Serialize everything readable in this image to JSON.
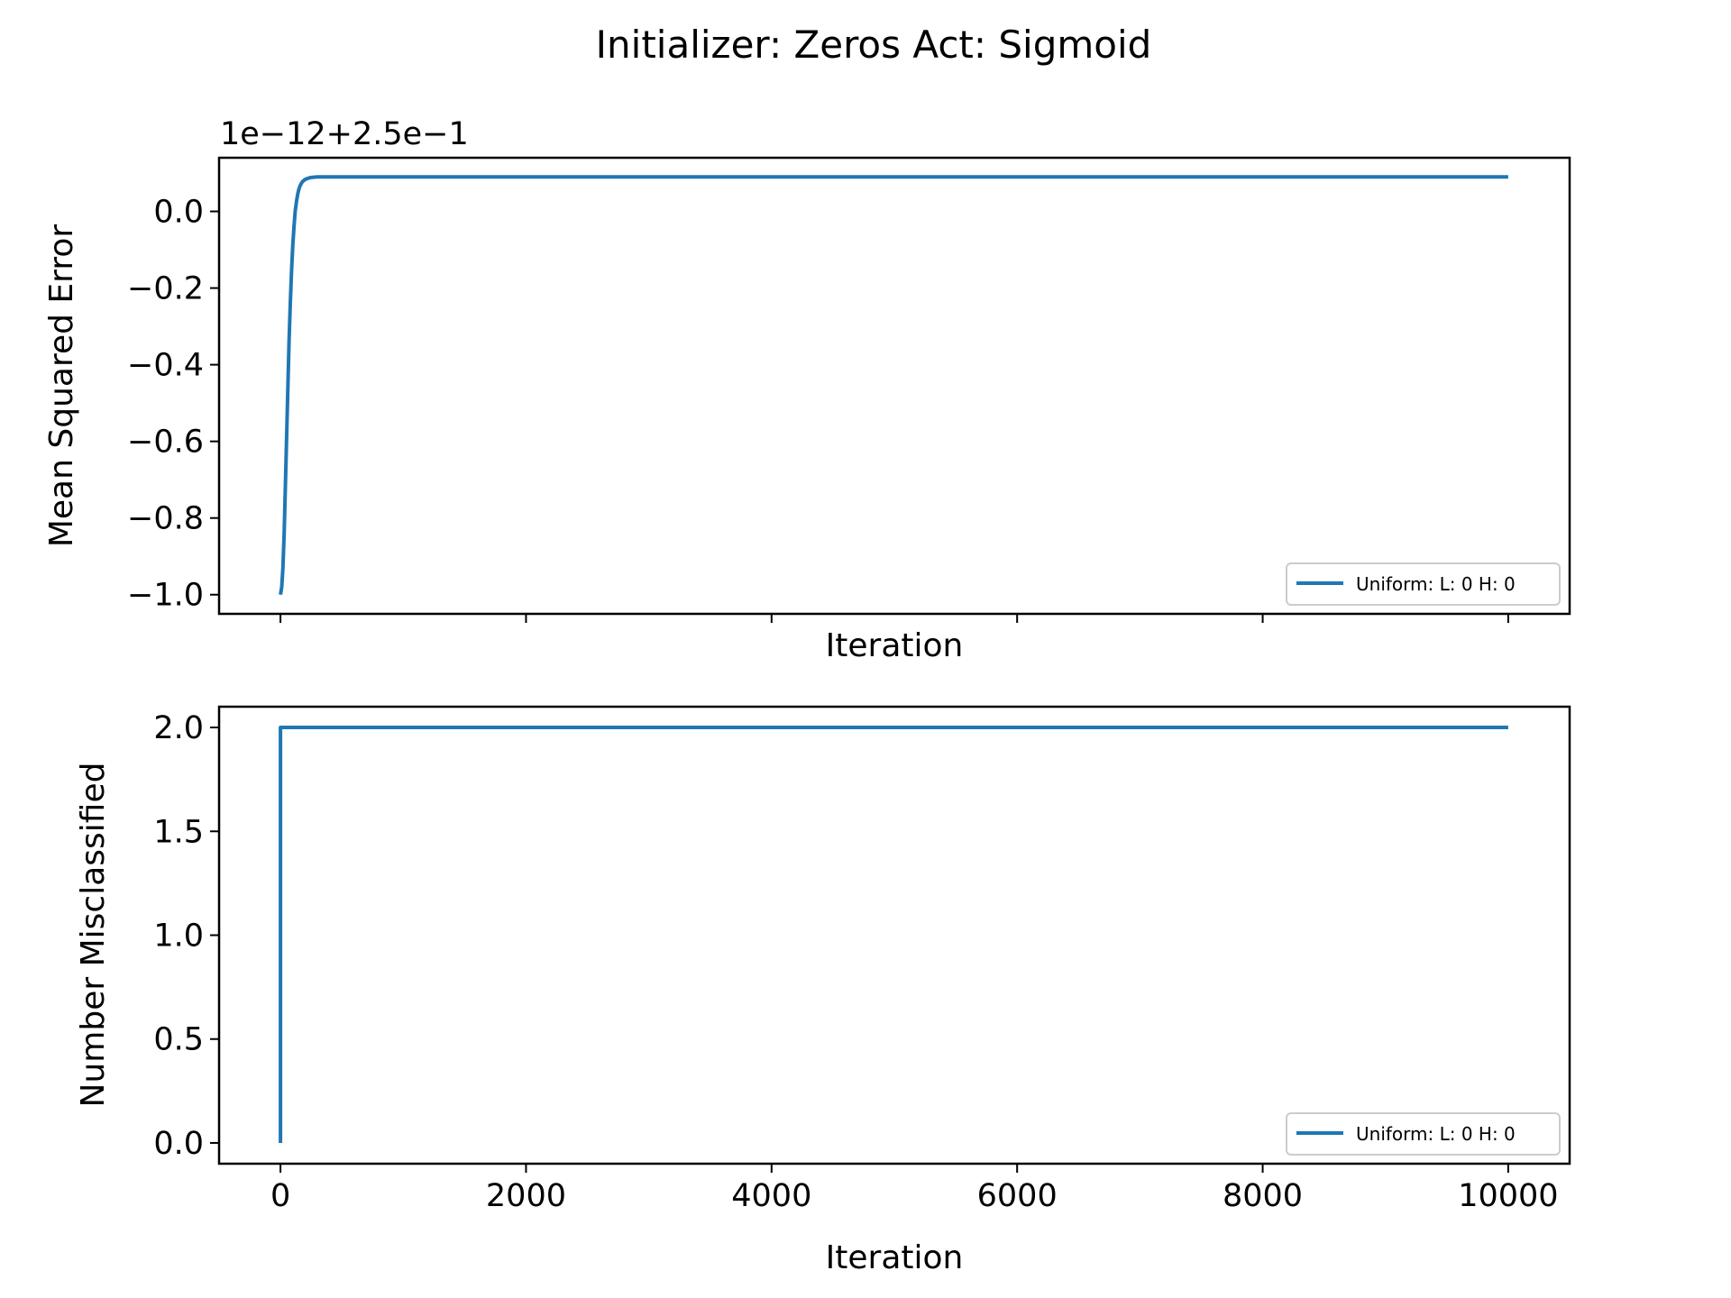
{
  "title": "Initializer: Zeros Act: Sigmoid",
  "colors": {
    "series": "#1f77b4",
    "axes": "#000000",
    "legend_border": "#cccccc"
  },
  "chart_data": [
    {
      "type": "line",
      "offset_label": "1e−12+2.5e−1",
      "xlabel": "Iteration",
      "ylabel": "Mean Squared Error",
      "xlim": [
        -500,
        10500
      ],
      "ylim": [
        -1.05,
        0.14
      ],
      "xticks": [
        0,
        2000,
        4000,
        6000,
        8000,
        10000
      ],
      "show_xtick_labels": false,
      "yticks": [
        -1.0,
        -0.8,
        -0.6,
        -0.4,
        -0.2,
        0.0
      ],
      "ytick_labels": [
        "−1.0",
        "−0.8",
        "−0.6",
        "−0.4",
        "−0.2",
        "0.0"
      ],
      "grid": false,
      "legend_position": "lower right",
      "series": [
        {
          "name": "Uniform: L: 0 H: 0",
          "x": [
            0,
            10,
            20,
            30,
            40,
            50,
            60,
            70,
            80,
            90,
            100,
            110,
            120,
            130,
            140,
            150,
            160,
            170,
            180,
            200,
            220,
            240,
            260,
            280,
            300,
            350,
            400,
            500,
            1000,
            2000,
            4000,
            6000,
            8000,
            10000
          ],
          "y": [
            -1.0,
            -0.98,
            -0.93,
            -0.84,
            -0.72,
            -0.59,
            -0.46,
            -0.34,
            -0.24,
            -0.16,
            -0.09,
            -0.04,
            0.0,
            0.025,
            0.045,
            0.058,
            0.067,
            0.073,
            0.078,
            0.083,
            0.086,
            0.088,
            0.089,
            0.0895,
            0.09,
            0.09,
            0.09,
            0.09,
            0.09,
            0.09,
            0.09,
            0.09,
            0.09,
            0.09
          ]
        }
      ]
    },
    {
      "type": "line",
      "xlabel": "Iteration",
      "ylabel": "Number Misclassified",
      "xlim": [
        -500,
        10500
      ],
      "ylim": [
        -0.1,
        2.1
      ],
      "xticks": [
        0,
        2000,
        4000,
        6000,
        8000,
        10000
      ],
      "xtick_labels": [
        "0",
        "2000",
        "4000",
        "6000",
        "8000",
        "10000"
      ],
      "show_xtick_labels": true,
      "yticks": [
        0.0,
        0.5,
        1.0,
        1.5,
        2.0
      ],
      "ytick_labels": [
        "0.0",
        "0.5",
        "1.0",
        "1.5",
        "2.0"
      ],
      "grid": false,
      "legend_position": "lower right",
      "series": [
        {
          "name": "Uniform: L: 0 H: 0",
          "x": [
            0,
            0,
            10000
          ],
          "y": [
            0,
            2,
            2
          ]
        }
      ]
    }
  ]
}
